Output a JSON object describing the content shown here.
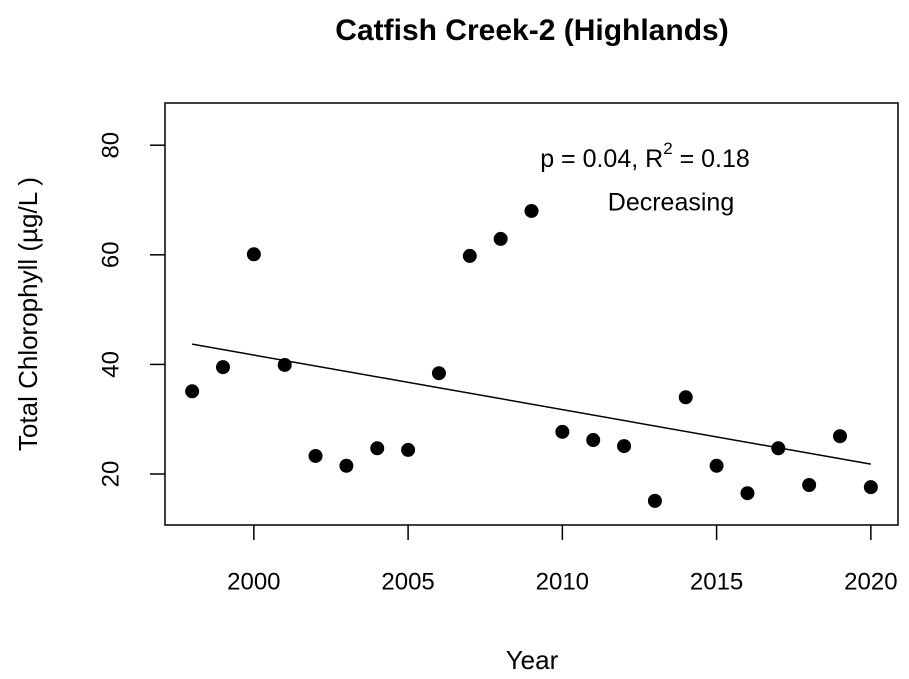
{
  "chart_data": {
    "type": "scatter",
    "title": "Catfish Creek-2 (Highlands)",
    "xlabel": "Year",
    "ylabel": "Total Chlorophyll (µg/L )",
    "annotation_parts": [
      "p = 0.04, R",
      "2",
      " = 0.18"
    ],
    "annotation_2": "Decreasing",
    "xlim": [
      1997.12,
      2020.88
    ],
    "ylim": [
      10.7,
      87.7
    ],
    "xticks": [
      2000,
      2005,
      2010,
      2015,
      2020
    ],
    "yticks": [
      20,
      40,
      60,
      80
    ],
    "color": "#000000",
    "x": [
      1998,
      1999,
      2000,
      2001,
      2002,
      2003,
      2004,
      2005,
      2006,
      2007,
      2008,
      2009,
      2010,
      2011,
      2012,
      2013,
      2014,
      2015,
      2016,
      2017,
      2018,
      2019,
      2020
    ],
    "values": [
      35.1,
      39.5,
      60.1,
      39.9,
      23.3,
      21.5,
      24.7,
      24.4,
      38.4,
      59.8,
      62.9,
      68.0,
      27.7,
      26.2,
      25.1,
      15.1,
      34.0,
      21.5,
      16.5,
      24.7,
      18.0,
      26.9,
      17.6
    ],
    "trend": {
      "x": [
        1998,
        2020
      ],
      "y": [
        43.7,
        21.8
      ]
    }
  }
}
